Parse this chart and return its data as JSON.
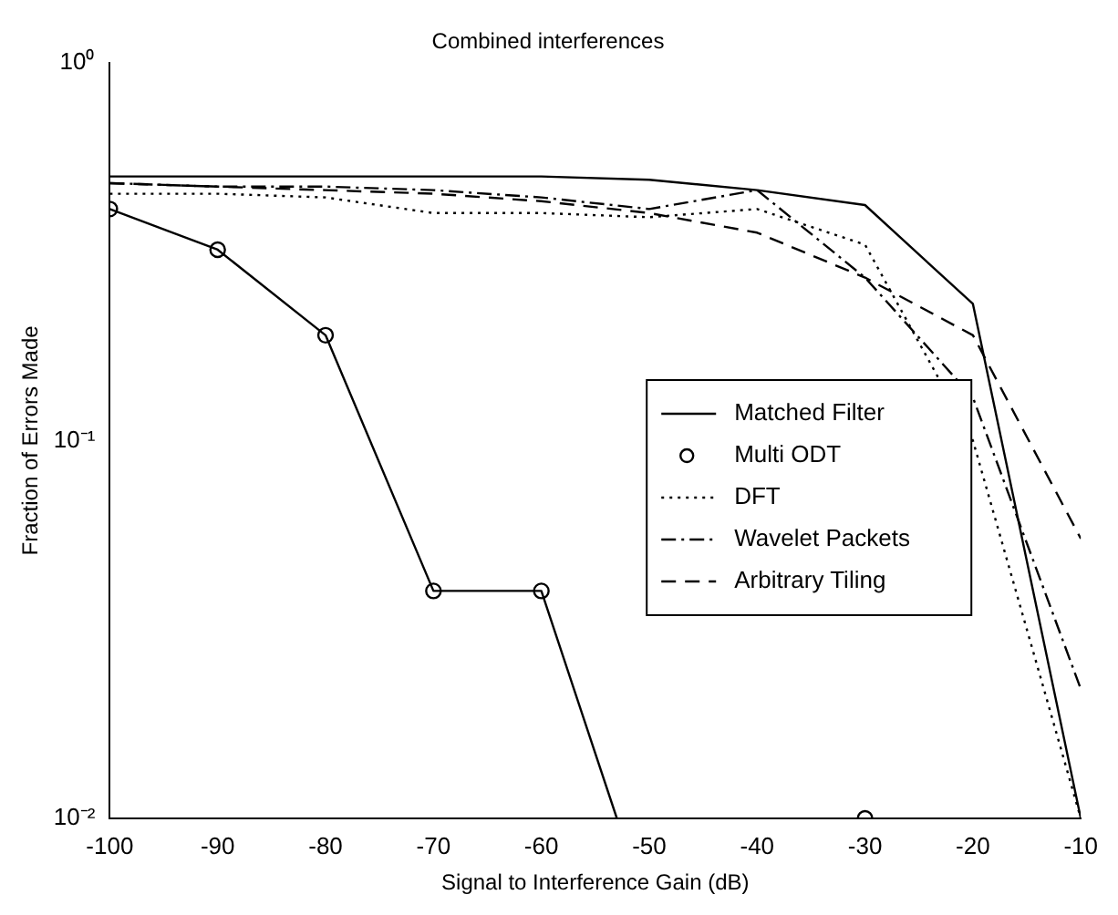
{
  "chart_data": {
    "type": "line",
    "title": "Combined interferences",
    "xlabel": "Signal to Interference Gain (dB)",
    "ylabel": "Fraction of Errors Made",
    "x": [
      -100,
      -90,
      -80,
      -70,
      -60,
      -50,
      -40,
      -30,
      -20,
      -10
    ],
    "series": [
      {
        "name": "Matched Filter",
        "color": "#000000",
        "line_style": "solid",
        "marker": "none",
        "values": [
          0.5,
          0.5,
          0.5,
          0.5,
          0.5,
          0.49,
          0.46,
          0.42,
          0.23,
          0.01
        ]
      },
      {
        "name": "Multi ODT",
        "type": "scatter",
        "color": "#000000",
        "marker": "circle",
        "x": [
          -100,
          -90,
          -80,
          -70,
          -60,
          -30
        ],
        "values": [
          0.41,
          0.32,
          0.19,
          0.04,
          0.04,
          0.01
        ]
      },
      {
        "color": "#000000",
        "line_style": "solid",
        "marker": "none",
        "x": [
          -100,
          -90,
          -80,
          -70,
          -60,
          -53
        ],
        "values": [
          0.41,
          0.32,
          0.19,
          0.04,
          0.04,
          0.01
        ]
      },
      {
        "name": "DFT",
        "color": "#000000",
        "line_style": "dotted",
        "marker": "none",
        "values": [
          0.45,
          0.45,
          0.44,
          0.4,
          0.4,
          0.39,
          0.41,
          0.33,
          0.1,
          0.01
        ]
      },
      {
        "name": "Wavelet Packets",
        "color": "#000000",
        "line_style": "dashdot",
        "marker": "none",
        "values": [
          0.48,
          0.47,
          0.47,
          0.46,
          0.44,
          0.41,
          0.46,
          0.27,
          0.13,
          0.022
        ]
      },
      {
        "name": "Arbitrary Tiling",
        "color": "#000000",
        "line_style": "dashed",
        "marker": "none",
        "values": [
          0.48,
          0.47,
          0.46,
          0.45,
          0.43,
          0.4,
          0.355,
          0.27,
          0.19,
          0.055
        ]
      }
    ],
    "log": "y",
    "xlim": [
      -100,
      -10
    ],
    "xticks": [
      -100,
      -90,
      -80,
      -70,
      -60,
      -50,
      -40,
      -30,
      -20,
      -10
    ],
    "ylim": [
      0.01,
      1
    ],
    "yticks": [
      {
        "value": 0.01,
        "label": "10⁻²"
      },
      {
        "value": 0.1,
        "label": "10⁻¹"
      },
      {
        "value": 1,
        "label": "10⁰"
      }
    ],
    "grid": false,
    "legend": "right"
  }
}
